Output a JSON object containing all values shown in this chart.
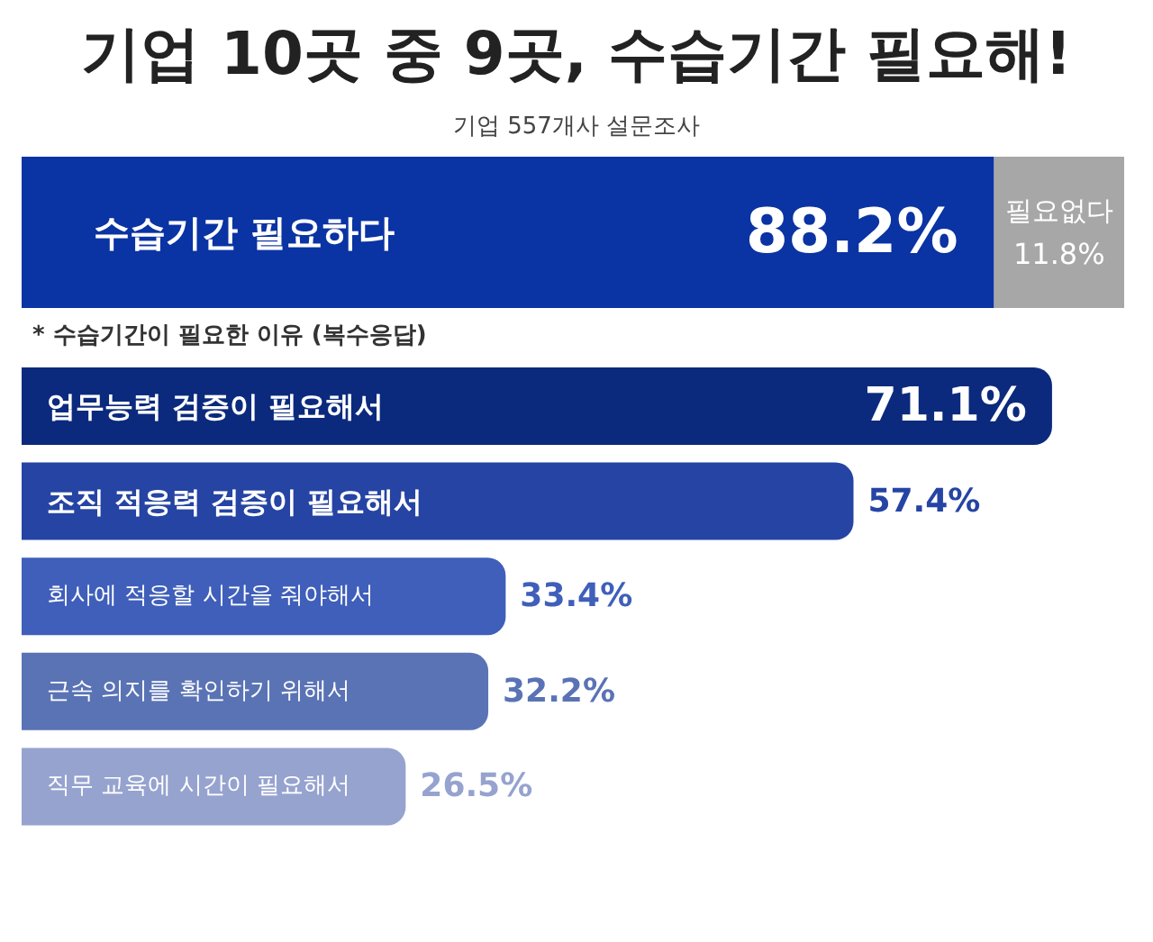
{
  "chart_data": [
    {
      "type": "bar",
      "orientation": "horizontal",
      "stacked": true,
      "title": "기업 10곳 중 9곳, 수습기간 필요해!",
      "subtitle": "기업 557개사 설문조사",
      "categories": [
        null
      ],
      "series": [
        {
          "name": "수습기간 필요하다",
          "color": "#0a33a3",
          "values": [
            88.2
          ],
          "value_labels": [
            "88.2%"
          ]
        },
        {
          "name": "필요없다",
          "color": "#a7a7a7",
          "values": [
            11.8
          ],
          "value_labels": [
            "11.8%"
          ]
        }
      ]
    },
    {
      "type": "bar",
      "orientation": "horizontal",
      "subtitle": "* 수습기간이 필요한 이유 (복수응답)",
      "categories": [
        "업무능력 검증이 필요해서",
        "조직 적응력 검증이 필요해서",
        "회사에 적응할 시간을 줘야해서",
        "근속 의지를 확인하기 위해서",
        "직무 교육에 시간이 필요해서"
      ],
      "values": [
        71.1,
        57.4,
        33.4,
        32.2,
        26.5
      ],
      "value_labels": [
        "71.1%",
        "57.4%",
        "33.4%",
        "32.2%",
        "26.5%"
      ],
      "colors": [
        "#0b2a7d",
        "#2544a3",
        "#3f5fba",
        "#5a73b5",
        "#96a3cf"
      ]
    }
  ]
}
